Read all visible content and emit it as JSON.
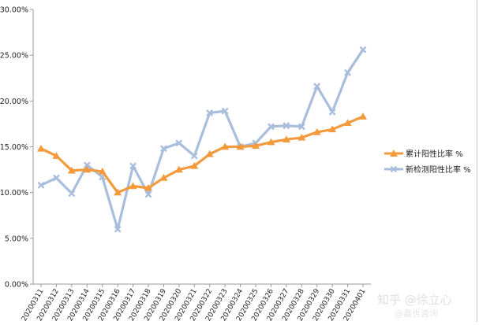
{
  "chart_data": {
    "type": "line",
    "categories": [
      "20200311",
      "20200312",
      "20200313",
      "20200314",
      "20200315",
      "20200316",
      "20200317",
      "20200318",
      "20200319",
      "20200320",
      "20200321",
      "20200322",
      "20200323",
      "20200324",
      "20200325",
      "20200326",
      "20200327",
      "20200328",
      "20200329",
      "20200330",
      "20200331",
      "20200401"
    ],
    "series": [
      {
        "name": "累计阳性比率 %",
        "color": "#f39a3c",
        "marker": "triangle",
        "values": [
          14.8,
          14.0,
          12.4,
          12.5,
          12.3,
          10.0,
          10.7,
          10.5,
          11.6,
          12.5,
          12.9,
          14.2,
          15.0,
          15.0,
          15.1,
          15.5,
          15.8,
          16.0,
          16.6,
          16.9,
          17.6,
          18.3
        ]
      },
      {
        "name": "新检测阳性比率 %",
        "color": "#a9bedc",
        "marker": "x",
        "values": [
          10.8,
          11.6,
          9.9,
          13.0,
          11.7,
          6.0,
          12.9,
          9.8,
          14.8,
          15.4,
          14.0,
          18.7,
          18.9,
          15.0,
          15.4,
          17.2,
          17.3,
          17.2,
          21.6,
          18.8,
          23.1,
          25.6
        ]
      }
    ],
    "y_ticks": [
      "0.00%",
      "5.00%",
      "10.00%",
      "15.00%",
      "20.00%",
      "25.00%",
      "30.00%"
    ],
    "ylim": [
      0,
      30
    ],
    "title": "",
    "xlabel": "",
    "ylabel": "",
    "grid": false,
    "legend_position": "right"
  },
  "watermark": {
    "line1": "知乎 @徐立心",
    "line2": "@嘉世咨询"
  }
}
